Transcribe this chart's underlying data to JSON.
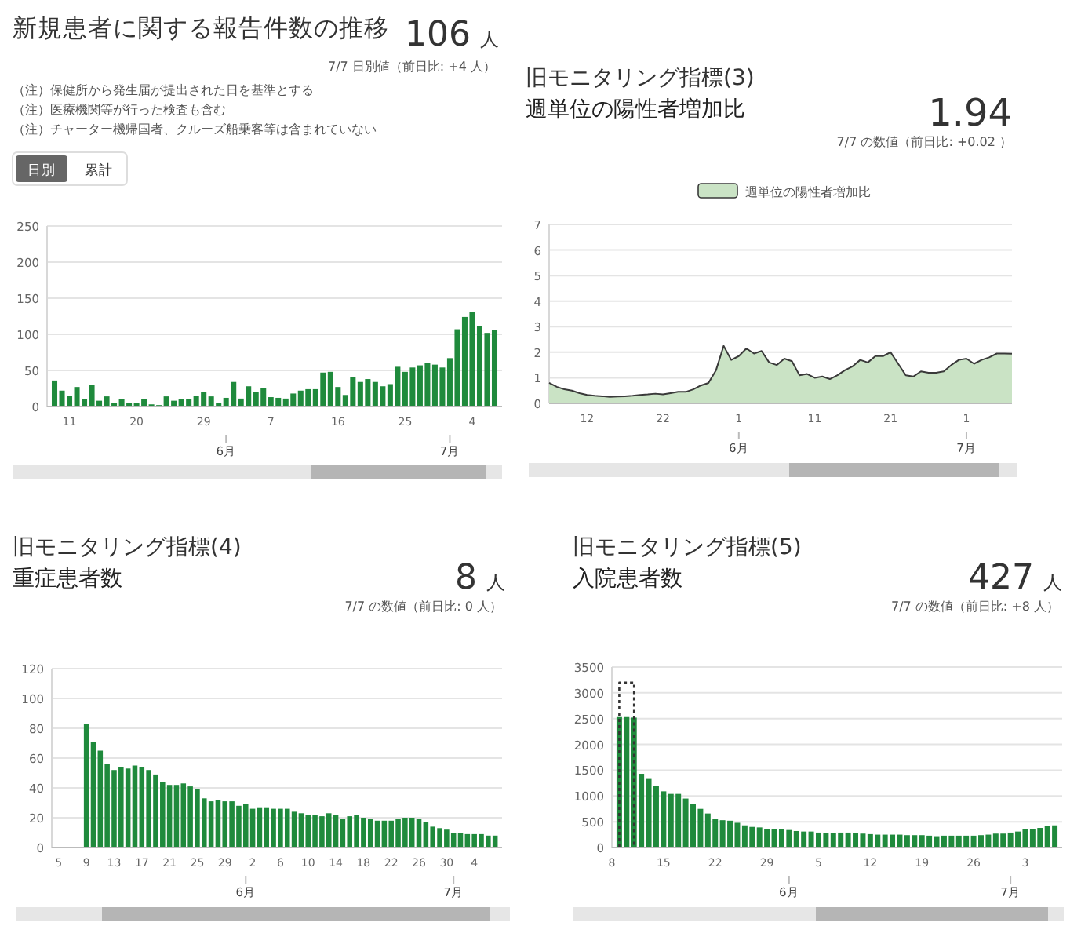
{
  "chart_data": [
    {
      "type": "bar",
      "title": "新規患者に関する報告件数の推移",
      "color": "#1f8a3c",
      "grid": "y",
      "x": [
        "--05-09",
        "--05-10",
        "--05-11",
        "--05-12",
        "--05-13",
        "--05-14",
        "--05-15",
        "--05-16",
        "--05-17",
        "--05-18",
        "--05-19",
        "--05-20",
        "--05-21",
        "--05-22",
        "--05-23",
        "--05-24",
        "--05-25",
        "--05-26",
        "--05-27",
        "--05-28",
        "--05-29",
        "--05-30",
        "--05-31",
        "--06-01",
        "--06-02",
        "--06-03",
        "--06-04",
        "--06-05",
        "--06-06",
        "--06-07",
        "--06-08",
        "--06-09",
        "--06-10",
        "--06-11",
        "--06-12",
        "--06-13",
        "--06-14",
        "--06-15",
        "--06-16",
        "--06-17",
        "--06-18",
        "--06-19",
        "--06-20",
        "--06-21",
        "--06-22",
        "--06-23",
        "--06-24",
        "--06-25",
        "--06-26",
        "--06-27",
        "--06-28",
        "--06-29",
        "--06-30",
        "--07-01",
        "--07-02",
        "--07-03",
        "--07-04",
        "--07-05",
        "--07-06",
        "--07-07"
      ],
      "values": [
        36,
        22,
        15,
        27,
        10,
        30,
        8,
        14,
        5,
        10,
        5,
        5,
        10,
        3,
        2,
        14,
        8,
        10,
        10,
        15,
        20,
        14,
        5,
        12,
        34,
        11,
        28,
        20,
        25,
        13,
        12,
        11,
        18,
        22,
        24,
        24,
        47,
        48,
        27,
        16,
        41,
        34,
        38,
        34,
        28,
        31,
        55,
        48,
        54,
        57,
        60,
        58,
        54,
        67,
        107,
        124,
        131,
        111,
        102,
        106
      ],
      "xlim": [
        "--05-08",
        "--07-08"
      ],
      "xticks": [
        {
          "value": "--05-11",
          "label": "11"
        },
        {
          "value": "--05-20",
          "label": "20"
        },
        {
          "value": "--05-29",
          "label": "29"
        },
        {
          "value": "--06-07",
          "label": "7"
        },
        {
          "value": "--06-16",
          "label": "16"
        },
        {
          "value": "--06-25",
          "label": "25"
        },
        {
          "value": "--07-04",
          "label": "4"
        }
      ],
      "x2lim": [
        "--05-08",
        "--07-08"
      ],
      "x2ticks": [
        {
          "value": "--06-01",
          "label": "6月"
        },
        {
          "value": "--07-01",
          "label": "7月"
        }
      ],
      "ylim": [
        0,
        250
      ],
      "yticks": [
        0,
        50,
        100,
        150,
        200,
        250
      ],
      "annotations": [
        "106",
        "人",
        "7/7 日別値（前日比: +4 人）",
        "（注）保健所から発生届が提出された日を基準とする",
        "（注）医療機関等が行った検査も含む",
        "（注）チャーター機帰国者、クルーズ船乗客等は含まれていない",
        "日別",
        "累計"
      ]
    },
    {
      "type": "area",
      "title": "旧モニタリング指標(3)",
      "subtitle": "週単位の陽性者増加比",
      "grid": "y",
      "legend": "top",
      "x": [
        "--05-07",
        "--05-08",
        "--05-09",
        "--05-10",
        "--05-11",
        "--05-12",
        "--05-13",
        "--05-14",
        "--05-15",
        "--05-16",
        "--05-17",
        "--05-18",
        "--05-19",
        "--05-20",
        "--05-21",
        "--05-22",
        "--05-23",
        "--05-24",
        "--05-25",
        "--05-26",
        "--05-27",
        "--05-28",
        "--05-29",
        "--05-30",
        "--05-31",
        "--06-01",
        "--06-02",
        "--06-03",
        "--06-04",
        "--06-05",
        "--06-06",
        "--06-07",
        "--06-08",
        "--06-09",
        "--06-10",
        "--06-11",
        "--06-12",
        "--06-13",
        "--06-14",
        "--06-15",
        "--06-16",
        "--06-17",
        "--06-18",
        "--06-19",
        "--06-20",
        "--06-21",
        "--06-22",
        "--06-23",
        "--06-24",
        "--06-25",
        "--06-26",
        "--06-27",
        "--06-28",
        "--06-29",
        "--06-30",
        "--07-01",
        "--07-02",
        "--07-03",
        "--07-04",
        "--07-05",
        "--07-06",
        "--07-07"
      ],
      "series": [
        {
          "name": "週単位の陽性者増加比",
          "color": "#cae3c5",
          "values": [
            0.8,
            0.65,
            0.55,
            0.5,
            0.4,
            0.33,
            0.3,
            0.28,
            0.25,
            0.27,
            0.28,
            0.3,
            0.33,
            0.35,
            0.38,
            0.35,
            0.4,
            0.45,
            0.45,
            0.55,
            0.7,
            0.8,
            1.3,
            2.25,
            1.7,
            1.85,
            2.15,
            1.95,
            2.05,
            1.6,
            1.5,
            1.75,
            1.65,
            1.1,
            1.15,
            1.0,
            1.05,
            0.95,
            1.1,
            1.3,
            1.45,
            1.7,
            1.6,
            1.85,
            1.85,
            2.0,
            1.55,
            1.1,
            1.05,
            1.25,
            1.2,
            1.2,
            1.25,
            1.5,
            1.7,
            1.75,
            1.55,
            1.7,
            1.8,
            1.95,
            1.95,
            1.94
          ]
        }
      ],
      "xlim": [
        "--05-07",
        "--07-07"
      ],
      "xticks": [
        {
          "value": "--05-12",
          "label": "12"
        },
        {
          "value": "--05-22",
          "label": "22"
        },
        {
          "value": "--06-01",
          "label": "1"
        },
        {
          "value": "--06-11",
          "label": "11"
        },
        {
          "value": "--06-21",
          "label": "21"
        },
        {
          "value": "--07-01",
          "label": "1"
        }
      ],
      "x2lim": [
        "--05-07",
        "--07-07"
      ],
      "x2ticks": [
        {
          "value": "--06-01",
          "label": "6月"
        },
        {
          "value": "--07-01",
          "label": "7月"
        }
      ],
      "ylim": [
        0,
        7
      ],
      "yticks": [
        0,
        1,
        2,
        3,
        4,
        5,
        6,
        7
      ],
      "annotations": [
        "1.94",
        "7/7 の数値（前日比: +0.02 ）"
      ]
    },
    {
      "type": "bar",
      "title": "旧モニタリング指標(4)",
      "subtitle": "重症患者数",
      "color": "#1f8a3c",
      "grid": "y",
      "x": [
        "--05-09",
        "--05-10",
        "--05-11",
        "--05-12",
        "--05-13",
        "--05-14",
        "--05-15",
        "--05-16",
        "--05-17",
        "--05-18",
        "--05-19",
        "--05-20",
        "--05-21",
        "--05-22",
        "--05-23",
        "--05-24",
        "--05-25",
        "--05-26",
        "--05-27",
        "--05-28",
        "--05-29",
        "--05-30",
        "--05-31",
        "--06-01",
        "--06-02",
        "--06-03",
        "--06-04",
        "--06-05",
        "--06-06",
        "--06-07",
        "--06-08",
        "--06-09",
        "--06-10",
        "--06-11",
        "--06-12",
        "--06-13",
        "--06-14",
        "--06-15",
        "--06-16",
        "--06-17",
        "--06-18",
        "--06-19",
        "--06-20",
        "--06-21",
        "--06-22",
        "--06-23",
        "--06-24",
        "--06-25",
        "--06-26",
        "--06-27",
        "--06-28",
        "--06-29",
        "--06-30",
        "--07-01",
        "--07-02",
        "--07-03",
        "--07-04",
        "--07-05",
        "--07-06",
        "--07-07"
      ],
      "values": [
        83,
        71,
        65,
        56,
        52,
        54,
        53,
        55,
        54,
        52,
        49,
        44,
        42,
        42,
        43,
        41,
        39,
        33,
        31,
        32,
        31,
        31,
        28,
        29,
        26,
        27,
        27,
        26,
        26,
        26,
        24,
        23,
        22,
        22,
        21,
        23,
        22,
        19,
        21,
        22,
        20,
        19,
        18,
        18,
        18,
        19,
        20,
        20,
        19,
        17,
        14,
        13,
        12,
        10,
        10,
        9,
        9,
        9,
        8,
        8
      ],
      "xlim": [
        "--05-04",
        "--07-08"
      ],
      "xticks": [
        {
          "value": "--05-05",
          "label": "5"
        },
        {
          "value": "--05-09",
          "label": "9"
        },
        {
          "value": "--05-13",
          "label": "13"
        },
        {
          "value": "--05-17",
          "label": "17"
        },
        {
          "value": "--05-21",
          "label": "21"
        },
        {
          "value": "--05-25",
          "label": "25"
        },
        {
          "value": "--05-29",
          "label": "29"
        },
        {
          "value": "--06-02",
          "label": "2"
        },
        {
          "value": "--06-06",
          "label": "6"
        },
        {
          "value": "--06-10",
          "label": "10"
        },
        {
          "value": "--06-14",
          "label": "14"
        },
        {
          "value": "--06-18",
          "label": "18"
        },
        {
          "value": "--06-22",
          "label": "22"
        },
        {
          "value": "--06-26",
          "label": "26"
        },
        {
          "value": "--06-30",
          "label": "30"
        },
        {
          "value": "--07-04",
          "label": "4"
        }
      ],
      "x2lim": [
        "--05-04",
        "--07-08"
      ],
      "x2ticks": [
        {
          "value": "--06-01",
          "label": "6月"
        },
        {
          "value": "--07-01",
          "label": "7月"
        }
      ],
      "ylim": [
        0,
        120
      ],
      "yticks": [
        0,
        20,
        40,
        60,
        80,
        100,
        120
      ],
      "annotations": [
        "8",
        "人",
        "7/7 の数値（前日比: 0 人）"
      ]
    },
    {
      "type": "bar",
      "title": "旧モニタリング指標(5)",
      "subtitle": "入院患者数",
      "grid": "y",
      "x": [
        "--05-09",
        "--05-10",
        "--05-11",
        "--05-12",
        "--05-13",
        "--05-14",
        "--05-15",
        "--05-16",
        "--05-17",
        "--05-18",
        "--05-19",
        "--05-20",
        "--05-21",
        "--05-22",
        "--05-23",
        "--05-24",
        "--05-25",
        "--05-26",
        "--05-27",
        "--05-28",
        "--05-29",
        "--05-30",
        "--05-31",
        "--06-01",
        "--06-02",
        "--06-03",
        "--06-04",
        "--06-05",
        "--06-06",
        "--06-07",
        "--06-08",
        "--06-09",
        "--06-10",
        "--06-11",
        "--06-12",
        "--06-13",
        "--06-14",
        "--06-15",
        "--06-16",
        "--06-17",
        "--06-18",
        "--06-19",
        "--06-20",
        "--06-21",
        "--06-22",
        "--06-23",
        "--06-24",
        "--06-25",
        "--06-26",
        "--06-27",
        "--06-28",
        "--06-29",
        "--06-30",
        "--07-01",
        "--07-02",
        "--07-03",
        "--07-04",
        "--07-05",
        "--07-06",
        "--07-07"
      ],
      "series": [
        {
          "color": "#1f8a3c",
          "values": [
            2530,
            2530,
            2520,
            1430,
            1330,
            1200,
            1090,
            1040,
            1040,
            950,
            840,
            750,
            660,
            560,
            530,
            520,
            480,
            430,
            400,
            390,
            360,
            360,
            360,
            340,
            320,
            310,
            310,
            290,
            280,
            280,
            290,
            290,
            280,
            270,
            260,
            250,
            250,
            250,
            250,
            240,
            240,
            240,
            230,
            220,
            230,
            230,
            230,
            230,
            230,
            240,
            250,
            270,
            270,
            290,
            310,
            350,
            360,
            380,
            420,
            430
          ]
        },
        {
          "type": "line",
          "x": [
            "--05-09",
            "--05-09",
            "--05-11",
            "--05-11"
          ],
          "values": [
            0,
            3200,
            3200,
            0
          ],
          "color": "#333333",
          "line_style": "dotted"
        }
      ],
      "xlim": [
        "--05-08",
        "--07-08"
      ],
      "xticks": [
        {
          "value": "--05-08",
          "label": "8"
        },
        {
          "value": "--05-15",
          "label": "15"
        },
        {
          "value": "--05-22",
          "label": "22"
        },
        {
          "value": "--05-29",
          "label": "29"
        },
        {
          "value": "--06-05",
          "label": "5"
        },
        {
          "value": "--06-12",
          "label": "12"
        },
        {
          "value": "--06-19",
          "label": "19"
        },
        {
          "value": "--06-26",
          "label": "26"
        },
        {
          "value": "--07-03",
          "label": "3"
        }
      ],
      "x2lim": [
        "--05-08",
        "--07-08"
      ],
      "x2ticks": [
        {
          "value": "--06-01",
          "label": "6月"
        },
        {
          "value": "--07-01",
          "label": "7月"
        }
      ],
      "ylim": [
        0,
        3500
      ],
      "yticks": [
        0,
        500,
        1000,
        1500,
        2000,
        2500,
        3000,
        3500
      ],
      "annotations": [
        "427",
        "人",
        "7/7 の数値（前日比: +8 人）"
      ]
    }
  ]
}
